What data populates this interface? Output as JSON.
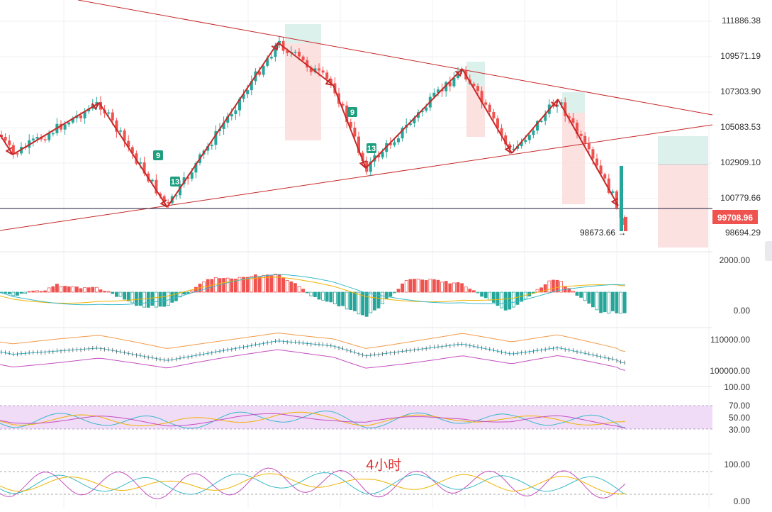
{
  "chart_data": {
    "type": "candlestick",
    "timeframe_label": "4小时",
    "price_axis_ticks": [
      "111886.38",
      "109571.19",
      "107303.90",
      "105083.53",
      "102909.10",
      "100779.66",
      "98694.29"
    ],
    "current_price": "99708.96",
    "low_marker": "98673.66 →",
    "macd_axis_ticks": [
      "2000.00",
      "0.00"
    ],
    "boll_axis_ticks": [
      "110000.00",
      "100000.00"
    ],
    "rsi_axis_ticks": [
      "100.00",
      "70.00",
      "50.00",
      "30.00"
    ],
    "kdj_axis_ticks": [
      "100.00",
      "0.00"
    ],
    "wave_labels": [
      "9",
      "13",
      "9",
      "13"
    ],
    "colors": {
      "up": "#26a69a",
      "down": "#ef5350",
      "trend": "#c62828",
      "box_green": "#d7efe9",
      "box_red": "#fbdcdc",
      "rsi_band": "#f0dcf7"
    }
  }
}
